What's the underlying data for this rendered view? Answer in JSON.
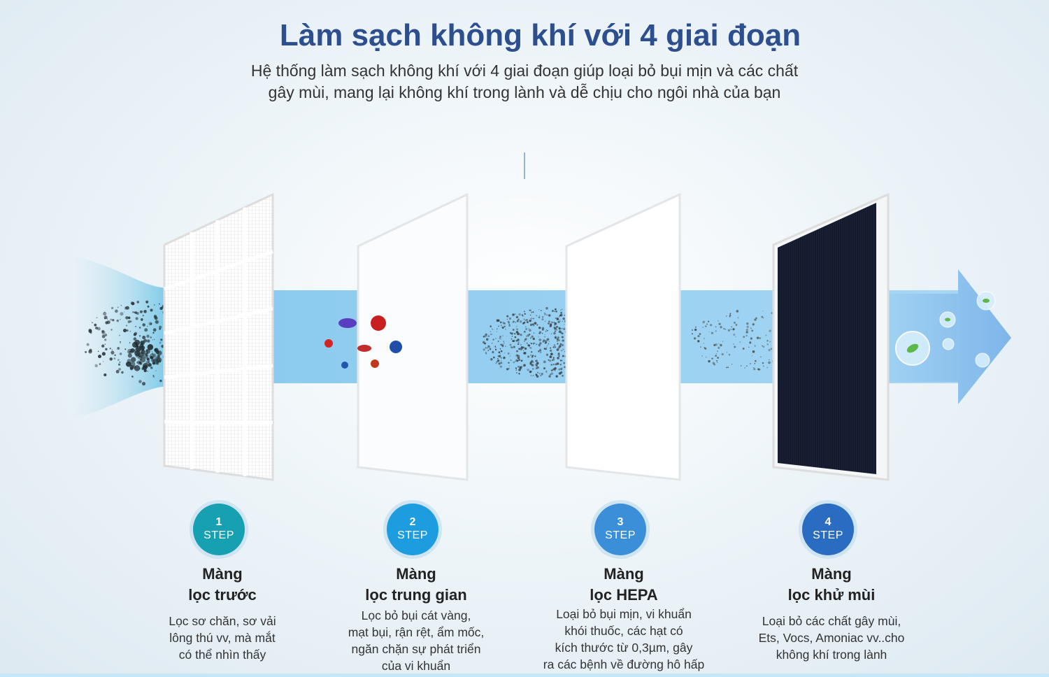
{
  "title": "Làm sạch không khí với 4 giai đoạn",
  "subtitle": [
    "Hệ thống làm sạch không khí với 4 giai đoạn giúp loại bỏ bụi mịn và các chất",
    "gây mùi, mang lại không khí trong lành và dễ chịu cho ngôi nhà của bạn"
  ],
  "colors": {
    "title": "#2d4f8e",
    "flow": "#9dd0f0",
    "step1": "#17a0b2",
    "step2": "#1d9ce0",
    "step3": "#3a8fd8",
    "step4": "#2a6cc2"
  },
  "steps": [
    {
      "number": "1",
      "step_label": "STEP",
      "title_line1": "Màng",
      "title_line2": "lọc trước",
      "description": [
        "Lọc sơ chăn, sơ vải",
        "lông thú vv, mà mắt",
        "có thể nhìn thấy"
      ]
    },
    {
      "number": "2",
      "step_label": "STEP",
      "title_line1": "Màng",
      "title_line2": "lọc trung gian",
      "description": [
        "Lọc bỏ bụi cát vàng,",
        "mạt bụi, rận rệt, ẩm mốc,",
        "ngăn chặn sự phát triển",
        "của vi khuẩn"
      ]
    },
    {
      "number": "3",
      "step_label": "STEP",
      "title_line1": "Màng",
      "title_line2": "lọc HEPA",
      "description": [
        "Loại bỏ bụi mịn, vi khuẩn",
        "khói thuốc, các hạt có",
        "kích thước từ 0,3µm, gây",
        "ra các bệnh về đường hô hấp"
      ]
    },
    {
      "number": "4",
      "step_label": "STEP",
      "title_line1": "Màng",
      "title_line2": "lọc khử mùi",
      "description": [
        "Loại bỏ các chất gây mùi,",
        "Ets, Vocs, Amoniac vv..cho",
        "không khí trong lành"
      ]
    }
  ]
}
